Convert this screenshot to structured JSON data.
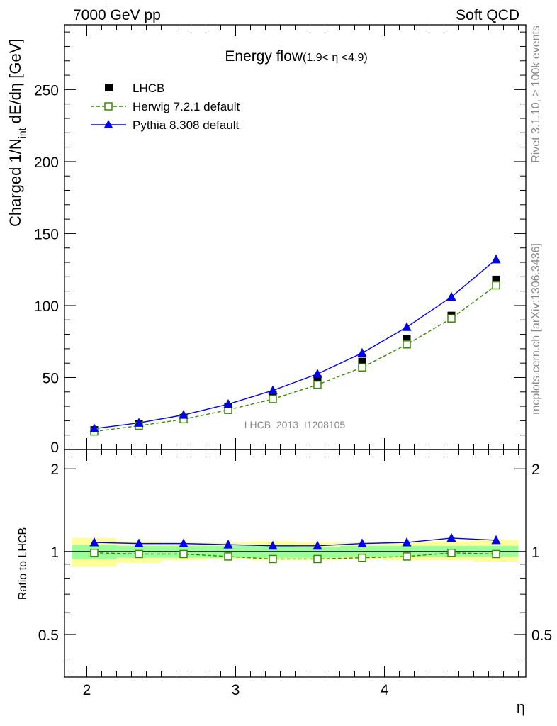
{
  "header": {
    "left": "7000 GeV pp",
    "right": "Soft QCD"
  },
  "side_text": {
    "rivet": "Rivet 3.1.10, ≥ 100k events",
    "mcplots": "mcplots.cern.ch [arXiv:1306.3436]"
  },
  "chart_data": {
    "type": "line",
    "title": "Energy flow",
    "title_sub": "(1.9< η <4.9)",
    "ylabel_main": "Charged 1/N",
    "ylabel_sub": "int",
    "ylabel_tail": " dE/dη [GeV]",
    "ylabel_ratio": "Ratio to LHCB",
    "xlabel": "η",
    "watermark": "LHCB_2013_I1208105",
    "xlim": [
      1.85,
      4.95
    ],
    "ylim_main": [
      0,
      295
    ],
    "ylim_ratio": [
      0.35,
      2.35
    ],
    "x_ticks": [
      "2",
      "3",
      "4"
    ],
    "y_ticks_main": [
      "0",
      "50",
      "100",
      "150",
      "200",
      "250"
    ],
    "y_ticks_ratio": [
      "0.5",
      "1",
      "2"
    ],
    "legend_placement": "top-left",
    "x": [
      2.05,
      2.35,
      2.65,
      2.95,
      3.25,
      3.55,
      3.85,
      4.15,
      4.45,
      4.75
    ],
    "bins": [
      [
        1.9,
        2.2
      ],
      [
        2.2,
        2.5
      ],
      [
        2.5,
        2.8
      ],
      [
        2.8,
        3.1
      ],
      [
        3.1,
        3.4
      ],
      [
        3.4,
        3.7
      ],
      [
        3.7,
        4.0
      ],
      [
        4.0,
        4.3
      ],
      [
        4.3,
        4.6
      ],
      [
        4.6,
        4.9
      ]
    ],
    "series": [
      {
        "name": "LHCB",
        "values": [
          13.5,
          17.5,
          22,
          29.5,
          38,
          49,
          61,
          77,
          93,
          118
        ],
        "ratio": [
          1,
          1,
          1,
          1,
          1,
          1,
          1,
          1,
          1,
          1
        ],
        "style": "marker-square-filled",
        "color": "#000000"
      },
      {
        "name": "Herwig 7.2.1 default",
        "values": [
          12.5,
          16.5,
          21,
          27.5,
          35,
          45,
          57,
          73,
          91,
          114
        ],
        "ratio": [
          0.99,
          0.98,
          0.98,
          0.96,
          0.94,
          0.94,
          0.95,
          0.96,
          0.99,
          0.98
        ],
        "style": "dashed-square-open",
        "color": "#3a8a00"
      },
      {
        "name": "Pythia 8.308 default",
        "values": [
          14.5,
          18.5,
          24,
          31.5,
          41,
          52.5,
          67,
          85,
          106,
          132
        ],
        "ratio": [
          1.08,
          1.07,
          1.07,
          1.06,
          1.05,
          1.05,
          1.07,
          1.08,
          1.12,
          1.1
        ],
        "style": "solid-triangle",
        "color": "#0000ee"
      }
    ],
    "uncertainty_bands": {
      "inner_color": "#99ff99",
      "outer_color": "#ffff99",
      "inner": [
        [
          0.94,
          1.06
        ],
        [
          0.95,
          1.05
        ],
        [
          0.95,
          1.05
        ],
        [
          0.95,
          1.05
        ],
        [
          0.95,
          1.05
        ],
        [
          0.95,
          1.04
        ],
        [
          0.96,
          1.05
        ],
        [
          0.96,
          1.05
        ],
        [
          0.96,
          1.05
        ],
        [
          0.96,
          1.05
        ]
      ],
      "outer": [
        [
          0.88,
          1.12
        ],
        [
          0.91,
          1.09
        ],
        [
          0.93,
          1.08
        ],
        [
          0.94,
          1.08
        ],
        [
          0.93,
          1.09
        ],
        [
          0.93,
          1.08
        ],
        [
          0.94,
          1.08
        ],
        [
          0.93,
          1.08
        ],
        [
          0.93,
          1.09
        ],
        [
          0.92,
          1.1
        ]
      ]
    }
  }
}
